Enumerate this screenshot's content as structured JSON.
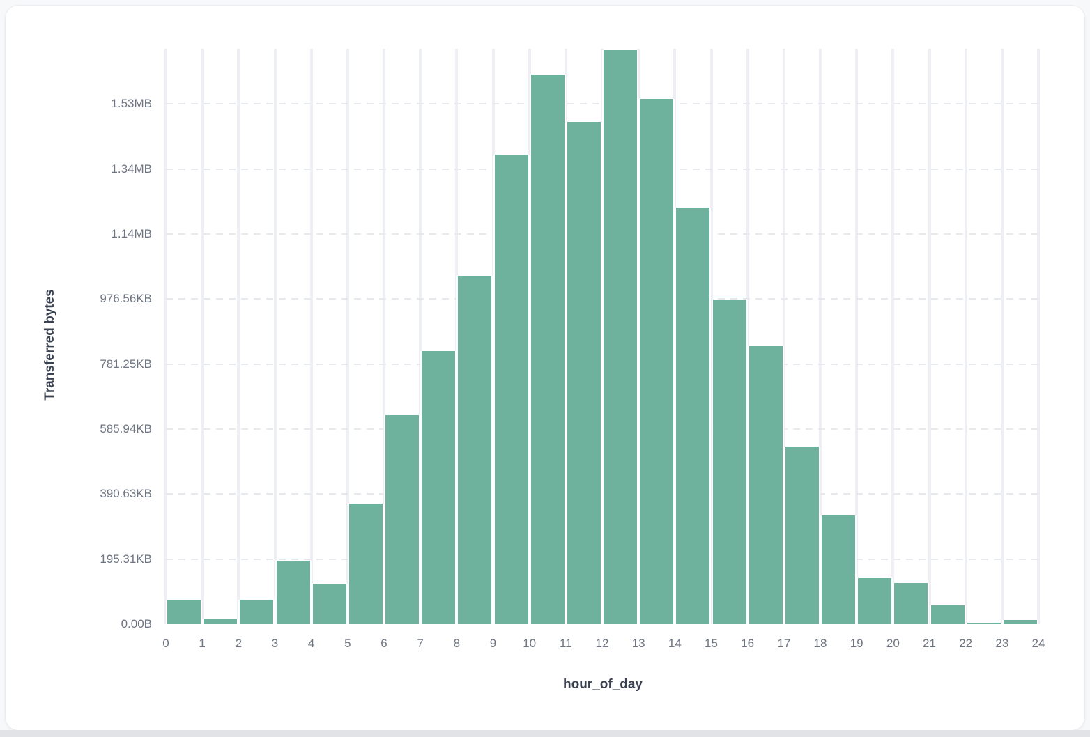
{
  "colors": {
    "page_background": "#f7f8fa",
    "bottom_strip": "#e2e3e6",
    "card_background": "#ffffff",
    "bar": "#6eb29e",
    "grid_vertical": "#edeff4",
    "grid_dashed": "#e7e9ee",
    "tick_label": "#6e7582",
    "axis_title": "#3a4150"
  },
  "chart_data": {
    "type": "bar",
    "title": "",
    "xlabel": "hour_of_day",
    "ylabel": "Transferred bytes",
    "categories": [
      0,
      1,
      2,
      3,
      4,
      5,
      6,
      7,
      8,
      9,
      10,
      11,
      12,
      13,
      14,
      15,
      16,
      17,
      18,
      19,
      20,
      21,
      22,
      23
    ],
    "values": [
      73000,
      17000,
      75000,
      196000,
      124000,
      371000,
      643000,
      840000,
      1072000,
      1445000,
      1691000,
      1546000,
      1766000,
      1616000,
      1282000,
      998000,
      857000,
      547000,
      334000,
      141000,
      126000,
      58000,
      5000,
      13000
    ],
    "values_unit": "bytes",
    "x_tick_labels": [
      "0",
      "1",
      "2",
      "3",
      "4",
      "5",
      "6",
      "7",
      "8",
      "9",
      "10",
      "11",
      "12",
      "13",
      "14",
      "15",
      "16",
      "17",
      "18",
      "19",
      "20",
      "21",
      "22",
      "23",
      "24"
    ],
    "y_ticks": [
      {
        "value": 0,
        "label": "0.00B"
      },
      {
        "value": 200000,
        "label": "195.31KB"
      },
      {
        "value": 400000,
        "label": "390.63KB"
      },
      {
        "value": 600000,
        "label": "585.94KB"
      },
      {
        "value": 800000,
        "label": "781.25KB"
      },
      {
        "value": 1000000,
        "label": "976.56KB"
      },
      {
        "value": 1200000,
        "label": "1.14MB"
      },
      {
        "value": 1400000,
        "label": "1.34MB"
      },
      {
        "value": 1600000,
        "label": "1.53MB"
      }
    ],
    "xlim": [
      0,
      24
    ],
    "ylim": [
      0,
      1770000
    ],
    "grid": true,
    "legend": false
  }
}
